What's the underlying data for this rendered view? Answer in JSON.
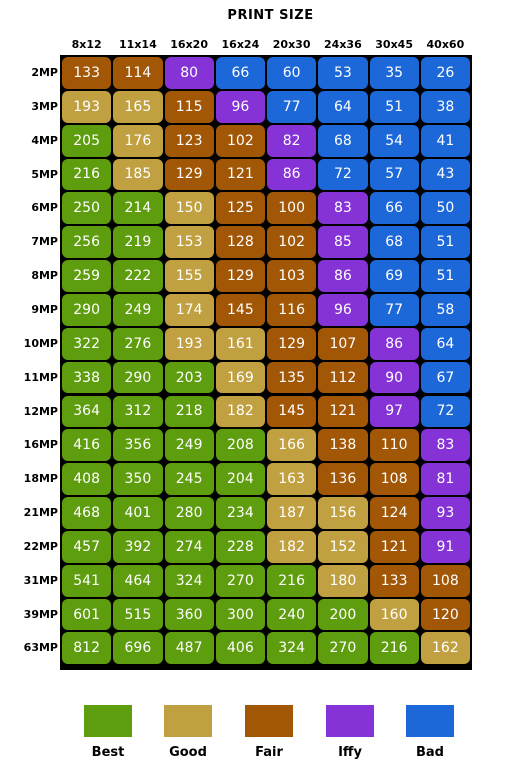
{
  "chart_data": {
    "type": "heatmap",
    "title": "PRINT SIZE",
    "columns": [
      "8x12",
      "11x14",
      "16x20",
      "16x24",
      "20x30",
      "24x36",
      "30x45",
      "40x60"
    ],
    "rows": [
      "2MP",
      "3MP",
      "4MP",
      "5MP",
      "6MP",
      "7MP",
      "8MP",
      "9MP",
      "10MP",
      "11MP",
      "12MP",
      "16MP",
      "18MP",
      "21MP",
      "22MP",
      "31MP",
      "39MP",
      "63MP"
    ],
    "values": [
      [
        133,
        114,
        80,
        66,
        60,
        53,
        35,
        26
      ],
      [
        193,
        165,
        115,
        96,
        77,
        64,
        51,
        38
      ],
      [
        205,
        176,
        123,
        102,
        82,
        68,
        54,
        41
      ],
      [
        216,
        185,
        129,
        121,
        86,
        72,
        57,
        43
      ],
      [
        250,
        214,
        150,
        125,
        100,
        83,
        66,
        50
      ],
      [
        256,
        219,
        153,
        128,
        102,
        85,
        68,
        51
      ],
      [
        259,
        222,
        155,
        129,
        103,
        86,
        69,
        51
      ],
      [
        290,
        249,
        174,
        145,
        116,
        96,
        77,
        58
      ],
      [
        322,
        276,
        193,
        161,
        129,
        107,
        86,
        64
      ],
      [
        338,
        290,
        203,
        169,
        135,
        112,
        90,
        67
      ],
      [
        364,
        312,
        218,
        182,
        145,
        121,
        97,
        72
      ],
      [
        416,
        356,
        249,
        208,
        166,
        138,
        110,
        83
      ],
      [
        408,
        350,
        245,
        204,
        163,
        136,
        108,
        81
      ],
      [
        468,
        401,
        280,
        234,
        187,
        156,
        124,
        93
      ],
      [
        457,
        392,
        274,
        228,
        182,
        152,
        121,
        91
      ],
      [
        541,
        464,
        324,
        270,
        216,
        180,
        133,
        108
      ],
      [
        601,
        515,
        360,
        300,
        240,
        200,
        160,
        120
      ],
      [
        812,
        696,
        487,
        406,
        324,
        270,
        216,
        162
      ]
    ],
    "ratings": [
      [
        "Fair",
        "Fair",
        "Iffy",
        "Bad",
        "Bad",
        "Bad",
        "Bad",
        "Bad"
      ],
      [
        "Good",
        "Good",
        "Fair",
        "Iffy",
        "Bad",
        "Bad",
        "Bad",
        "Bad"
      ],
      [
        "Best",
        "Good",
        "Fair",
        "Fair",
        "Iffy",
        "Bad",
        "Bad",
        "Bad"
      ],
      [
        "Best",
        "Good",
        "Fair",
        "Fair",
        "Iffy",
        "Bad",
        "Bad",
        "Bad"
      ],
      [
        "Best",
        "Best",
        "Good",
        "Fair",
        "Fair",
        "Iffy",
        "Bad",
        "Bad"
      ],
      [
        "Best",
        "Best",
        "Good",
        "Fair",
        "Fair",
        "Iffy",
        "Bad",
        "Bad"
      ],
      [
        "Best",
        "Best",
        "Good",
        "Fair",
        "Fair",
        "Iffy",
        "Bad",
        "Bad"
      ],
      [
        "Best",
        "Best",
        "Good",
        "Fair",
        "Fair",
        "Iffy",
        "Bad",
        "Bad"
      ],
      [
        "Best",
        "Best",
        "Good",
        "Good",
        "Fair",
        "Fair",
        "Iffy",
        "Bad"
      ],
      [
        "Best",
        "Best",
        "Best",
        "Good",
        "Fair",
        "Fair",
        "Iffy",
        "Bad"
      ],
      [
        "Best",
        "Best",
        "Best",
        "Good",
        "Fair",
        "Fair",
        "Iffy",
        "Bad"
      ],
      [
        "Best",
        "Best",
        "Best",
        "Best",
        "Good",
        "Fair",
        "Fair",
        "Iffy"
      ],
      [
        "Best",
        "Best",
        "Best",
        "Best",
        "Good",
        "Fair",
        "Fair",
        "Iffy"
      ],
      [
        "Best",
        "Best",
        "Best",
        "Best",
        "Good",
        "Good",
        "Fair",
        "Iffy"
      ],
      [
        "Best",
        "Best",
        "Best",
        "Best",
        "Good",
        "Good",
        "Fair",
        "Iffy"
      ],
      [
        "Best",
        "Best",
        "Best",
        "Best",
        "Best",
        "Good",
        "Fair",
        "Fair"
      ],
      [
        "Best",
        "Best",
        "Best",
        "Best",
        "Best",
        "Best",
        "Good",
        "Fair"
      ],
      [
        "Best",
        "Best",
        "Best",
        "Best",
        "Best",
        "Best",
        "Best",
        "Good"
      ]
    ],
    "legend": [
      {
        "label": "Best",
        "color": "#5e9d0e"
      },
      {
        "label": "Good",
        "color": "#c0a041"
      },
      {
        "label": "Fair",
        "color": "#a25707"
      },
      {
        "label": "Iffy",
        "color": "#8532d6"
      },
      {
        "label": "Bad",
        "color": "#1c68d9"
      }
    ],
    "legend_placement": "bottom",
    "grid": true
  }
}
